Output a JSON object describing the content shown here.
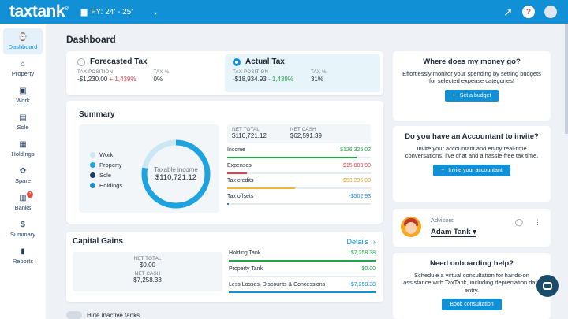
{
  "topbar": {
    "logo": "taxtank",
    "logo_mark": "®",
    "fy_label": "FY: 24' - 25'",
    "rocket_icon": "rocket-icon",
    "rating_icon": "circle-badge"
  },
  "sidebar": {
    "items": [
      {
        "label": "Dashboard",
        "icon": "⌚"
      },
      {
        "label": "Property",
        "icon": "⌂"
      },
      {
        "label": "Work",
        "icon": "▣"
      },
      {
        "label": "Sole",
        "icon": "▤"
      },
      {
        "label": "Holdings",
        "icon": "▦"
      },
      {
        "label": "Spare",
        "icon": "✿"
      },
      {
        "label": "Banks",
        "icon": "▥",
        "badge": "7"
      },
      {
        "label": "Summary",
        "icon": "$"
      },
      {
        "label": "Reports",
        "icon": "▮"
      }
    ]
  },
  "main": {
    "title": "Dashboard"
  },
  "tax": {
    "forecast": {
      "title": "Forecasted Tax",
      "pos_label": "TAX POSITION",
      "pos_value": "-$1,230.00",
      "pos_change": "+ 1,439%",
      "pct_label": "TAX %",
      "pct_value": "0%"
    },
    "actual": {
      "title": "Actual Tax",
      "pos_label": "TAX POSITION",
      "pos_value": "-$18,934.93",
      "pos_change": "- 1,439%",
      "pct_label": "TAX %",
      "pct_value": "31%"
    }
  },
  "summary": {
    "title": "Summary",
    "legend": [
      {
        "label": "Work",
        "color": "#cbe7f3"
      },
      {
        "label": "Property",
        "color": "#1ca3e0"
      },
      {
        "label": "Sole",
        "color": "#1b3b5f"
      },
      {
        "label": "Holdings",
        "color": "#1e8ec4"
      }
    ],
    "donut_label": "Taxable income",
    "donut_value": "$110,721.12",
    "donut_fill": 0.78,
    "net_total_label": "NET TOTAL",
    "net_total_value": "$110,721.12",
    "net_cash_label": "NET CASH",
    "net_cash_value": "$62,591.39",
    "rows": [
      {
        "label": "Income",
        "value": "$126,325.02",
        "color": "#1fa64a",
        "fill": 0.9
      },
      {
        "label": "Expenses",
        "value": "-$15,803.90",
        "color": "#e0424b",
        "fill": 0.14
      },
      {
        "label": "Tax credits",
        "value": "-$53,235.00",
        "color": "#f2b632",
        "fill": 0.47
      },
      {
        "label": "Tax offsets",
        "value": "-$502.93",
        "color": "#1190d6",
        "fill": 0.01
      }
    ]
  },
  "cg": {
    "title": "Capital Gains",
    "details": "Details",
    "net_total_label": "NET TOTAL",
    "net_total_value": "$0.00",
    "net_cash_label": "NET CASH",
    "net_cash_value": "$7,258.38",
    "rows": [
      {
        "label": "Holding Tank",
        "value": "$7,258.38",
        "color": "#1fa64a",
        "fill": 1.0
      },
      {
        "label": "Property Tank",
        "value": "$0.00",
        "color": "#1fa64a",
        "fill": 0
      },
      {
        "label": "Less Losses, Discounts & Concessions",
        "value": "-$7,258.38",
        "color": "#1190d6",
        "fill": 1.0
      }
    ]
  },
  "hide_inactive": "Hide inactive tanks",
  "right": {
    "money": {
      "title": "Where does my money go?",
      "text": "Effortlessly monitor your spending by setting budgets for selected expense categories!",
      "button": "Set a budget"
    },
    "accountant": {
      "title": "Do you have an Accountant to invite?",
      "text": "Invite your accountant and enjoy real-time conversations, live chat and a hassle-free tax time.",
      "button": "Invite your accountant"
    },
    "advisors": {
      "label": "Advisors",
      "name": "Adam Tank ▾"
    },
    "onboarding": {
      "title": "Need onboarding help?",
      "text": "Schedule a virtual consultation for hands-on assistance with TaxTank, including depreciation data entry.",
      "button": "Book consultation"
    }
  }
}
